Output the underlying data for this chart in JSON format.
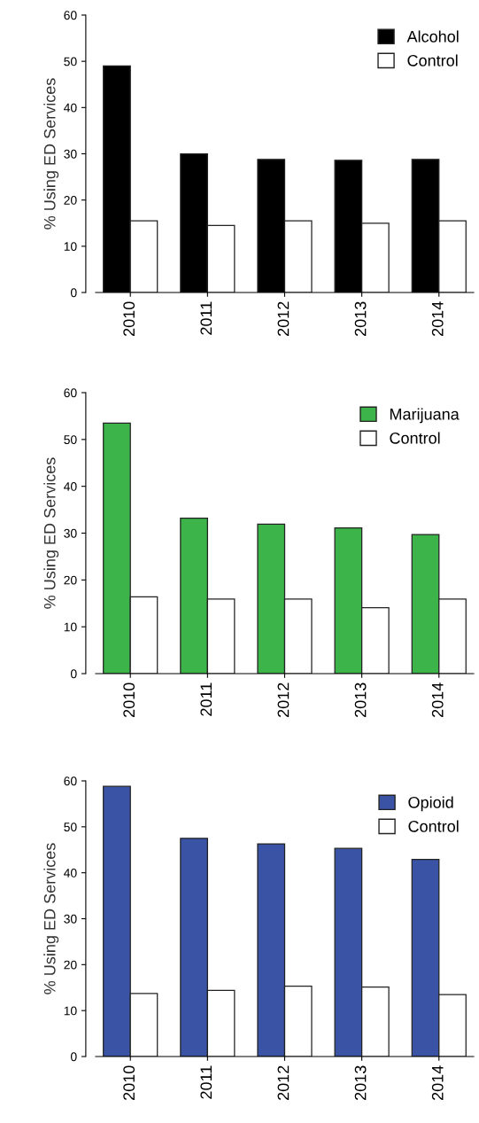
{
  "chart_data": [
    {
      "type": "bar",
      "ylabel": "% Using ED Services",
      "categories": [
        "2010",
        "2011",
        "2012",
        "2013",
        "2014"
      ],
      "ylim": [
        0,
        60
      ],
      "yticks": [
        0,
        10,
        20,
        30,
        40,
        50,
        60
      ],
      "legend": "top right",
      "grid": false,
      "series": [
        {
          "name": "Alcohol",
          "color": "#000000",
          "values": [
            49,
            30,
            28.8,
            28.6,
            28.8
          ]
        },
        {
          "name": "Control",
          "color": "#ffffff",
          "values": [
            15.5,
            14.5,
            15.5,
            15,
            15.5
          ]
        }
      ]
    },
    {
      "type": "bar",
      "ylabel": "% Using ED Services",
      "categories": [
        "2010",
        "2011",
        "2012",
        "2013",
        "2014"
      ],
      "ylim": [
        0,
        60
      ],
      "yticks": [
        0,
        10,
        20,
        30,
        40,
        50,
        60
      ],
      "legend": "top right",
      "grid": false,
      "series": [
        {
          "name": "Marijuana",
          "color": "#3cb44a",
          "values": [
            53.5,
            33.2,
            31.9,
            31.1,
            29.7
          ]
        },
        {
          "name": "Control",
          "color": "#ffffff",
          "values": [
            16.4,
            15.9,
            15.9,
            14.1,
            15.9
          ]
        }
      ]
    },
    {
      "type": "bar",
      "ylabel": "% Using ED Services",
      "categories": [
        "2010",
        "2011",
        "2012",
        "2013",
        "2014"
      ],
      "ylim": [
        0,
        60
      ],
      "yticks": [
        0,
        10,
        20,
        30,
        40,
        50,
        60
      ],
      "legend": "top right",
      "grid": false,
      "series": [
        {
          "name": "Opioid",
          "color": "#3a53a4",
          "values": [
            58.8,
            47.5,
            46.3,
            45.3,
            42.9
          ]
        },
        {
          "name": "Control",
          "color": "#ffffff",
          "values": [
            13.7,
            14.4,
            15.3,
            15.1,
            13.5
          ]
        }
      ]
    }
  ]
}
